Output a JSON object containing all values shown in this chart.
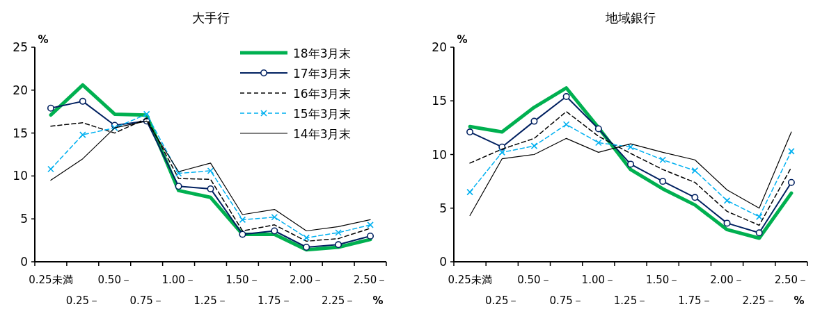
{
  "chart_data": [
    {
      "type": "line",
      "title": "大手行",
      "ylabel": "%",
      "xlabel": "%",
      "categories": [
        "0.25未満",
        "0.25－",
        "0.50－",
        "0.75－",
        "1.00－",
        "1.25－",
        "1.50－",
        "1.75－",
        "2.00－",
        "2.25－",
        "2.50－"
      ],
      "ylim": [
        0,
        25
      ],
      "yticks": [
        0,
        5,
        10,
        15,
        20,
        25
      ],
      "grid": false,
      "legend": "top right",
      "series": [
        {
          "name": "18年3月末",
          "color": "#00b050",
          "marker": "none",
          "line_style": "solid",
          "values": [
            17.1,
            20.6,
            17.2,
            17.1,
            8.3,
            7.5,
            3.2,
            3.2,
            1.4,
            1.7,
            2.6
          ]
        },
        {
          "name": "17年3月末",
          "color": "#002060",
          "marker": "circle",
          "line_style": "solid",
          "values": [
            17.9,
            18.7,
            15.9,
            16.4,
            8.8,
            8.5,
            3.2,
            3.6,
            1.7,
            2.0,
            3.0
          ]
        },
        {
          "name": "16年3月末",
          "color": "#000000",
          "marker": "none",
          "line_style": "dashed",
          "values": [
            15.8,
            16.2,
            15.0,
            16.7,
            9.7,
            9.6,
            3.6,
            4.3,
            2.4,
            2.7,
            3.9
          ]
        },
        {
          "name": "15年3月末",
          "color": "#00b0f0",
          "marker": "cross",
          "line_style": "dashed",
          "values": [
            10.8,
            14.8,
            15.6,
            17.2,
            10.3,
            10.6,
            4.9,
            5.2,
            2.8,
            3.4,
            4.3
          ]
        },
        {
          "name": "14年3月末",
          "color": "#000000",
          "marker": "none",
          "line_style": "solid",
          "values": [
            9.5,
            12.0,
            15.6,
            16.4,
            10.5,
            11.5,
            5.5,
            6.1,
            3.6,
            4.1,
            4.9
          ]
        }
      ]
    },
    {
      "type": "line",
      "title": "地域銀行",
      "ylabel": "%",
      "xlabel": "%",
      "categories": [
        "0.25未満",
        "0.25－",
        "0.50－",
        "0.75－",
        "1.00－",
        "1.25－",
        "1.50－",
        "1.75－",
        "2.00－",
        "2.25－",
        "2.50－"
      ],
      "ylim": [
        0,
        20
      ],
      "yticks": [
        0,
        5,
        10,
        15,
        20
      ],
      "grid": false,
      "legend": false,
      "series": [
        {
          "color": "#00b050",
          "marker": "none",
          "line_style": "solid",
          "values": [
            12.6,
            12.1,
            14.4,
            16.2,
            12.5,
            8.6,
            6.8,
            5.3,
            3.0,
            2.2,
            6.4
          ]
        },
        {
          "color": "#002060",
          "marker": "circle",
          "line_style": "solid",
          "values": [
            12.1,
            10.7,
            13.1,
            15.4,
            12.4,
            9.1,
            7.5,
            6.0,
            3.6,
            2.7,
            7.4
          ]
        },
        {
          "color": "#000000",
          "marker": "none",
          "line_style": "dashed",
          "values": [
            9.2,
            10.5,
            11.5,
            14.0,
            11.7,
            10.1,
            8.6,
            7.4,
            4.7,
            3.4,
            8.8
          ]
        },
        {
          "color": "#00b0f0",
          "marker": "cross",
          "line_style": "dashed",
          "values": [
            6.5,
            10.2,
            10.8,
            12.8,
            11.1,
            10.7,
            9.5,
            8.5,
            5.7,
            4.2,
            10.3
          ]
        },
        {
          "color": "#000000",
          "marker": "none",
          "line_style": "solid",
          "values": [
            4.3,
            9.6,
            10.0,
            11.5,
            10.2,
            11.0,
            10.2,
            9.5,
            6.7,
            5.0,
            12.1
          ]
        }
      ]
    }
  ]
}
